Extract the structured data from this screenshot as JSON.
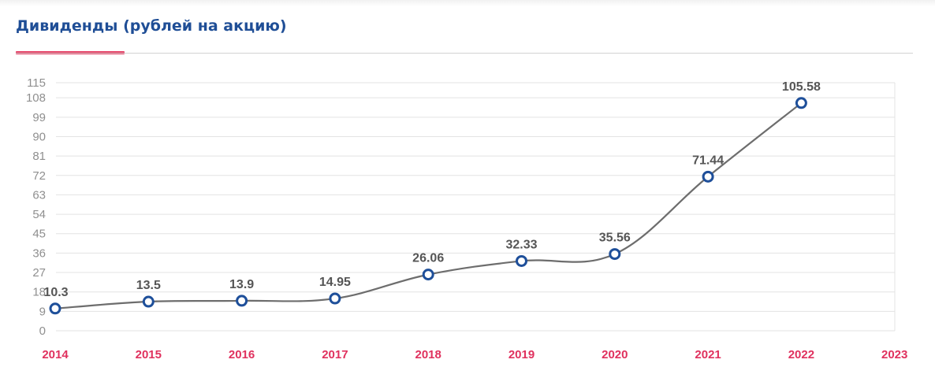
{
  "header": {
    "title": "Дивиденды (рублей на акцию)"
  },
  "colors": {
    "title": "#1f4e96",
    "accent_underline": "#e63c62",
    "x_tick_labels": "#e0315e",
    "y_tick_labels": "#8f8f8f",
    "line": "#6d6d6d",
    "marker_stroke": "#1e4f9a",
    "data_labels": "#555555"
  },
  "chart_data": {
    "type": "line",
    "title": "Дивиденды (рублей на акцию)",
    "xlabel": "",
    "ylabel": "",
    "categories": [
      "2014",
      "2015",
      "2016",
      "2017",
      "2018",
      "2019",
      "2020",
      "2021",
      "2022",
      "2023"
    ],
    "series": [
      {
        "values": [
          10.3,
          13.5,
          13.9,
          14.95,
          26.06,
          32.33,
          35.56,
          71.44,
          105.58,
          null
        ]
      }
    ],
    "data_labels": [
      "10.3",
      "13.5",
      "13.9",
      "14.95",
      "26.06",
      "32.33",
      "35.56",
      "71.44",
      "105.58"
    ],
    "y_ticks": [
      0,
      9,
      18,
      27,
      36,
      45,
      54,
      63,
      72,
      81,
      90,
      99,
      108,
      115
    ],
    "ylim": [
      0,
      115
    ],
    "grid": true,
    "legend": "none",
    "smooth": true
  }
}
